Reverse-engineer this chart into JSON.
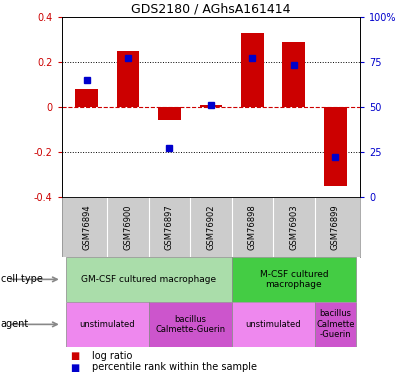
{
  "title": "GDS2180 / AGhsA161414",
  "samples": [
    "GSM76894",
    "GSM76900",
    "GSM76897",
    "GSM76902",
    "GSM76898",
    "GSM76903",
    "GSM76899"
  ],
  "log_ratio": [
    0.08,
    0.25,
    -0.06,
    0.01,
    0.33,
    0.29,
    -0.35
  ],
  "percentile_rank": [
    65,
    77,
    27,
    51,
    77,
    73,
    22
  ],
  "ylim_left": [
    -0.4,
    0.4
  ],
  "ylim_right": [
    0,
    100
  ],
  "bar_color": "#cc0000",
  "dot_color": "#0000cc",
  "dotted_line_color": "#000000",
  "zero_line_color": "#cc0000",
  "cell_type_groups": [
    {
      "label": "GM-CSF cultured macrophage",
      "start": 0,
      "end": 4,
      "color": "#aaddaa"
    },
    {
      "label": "M-CSF cultured\nmacrophage",
      "start": 4,
      "end": 7,
      "color": "#44cc44"
    }
  ],
  "agent_groups": [
    {
      "label": "unstimulated",
      "start": 0,
      "end": 2,
      "color": "#ee88ee"
    },
    {
      "label": "bacillus\nCalmette-Guerin",
      "start": 2,
      "end": 4,
      "color": "#cc55cc"
    },
    {
      "label": "unstimulated",
      "start": 4,
      "end": 6,
      "color": "#ee88ee"
    },
    {
      "label": "bacillus\nCalmette\n-Guerin",
      "start": 6,
      "end": 7,
      "color": "#cc55cc"
    }
  ],
  "legend_bar_color": "#cc0000",
  "legend_dot_color": "#0000cc",
  "tick_label_color_left": "#cc0000",
  "tick_label_color_right": "#0000cc",
  "background_color": "#ffffff",
  "sample_bg": "#cccccc"
}
